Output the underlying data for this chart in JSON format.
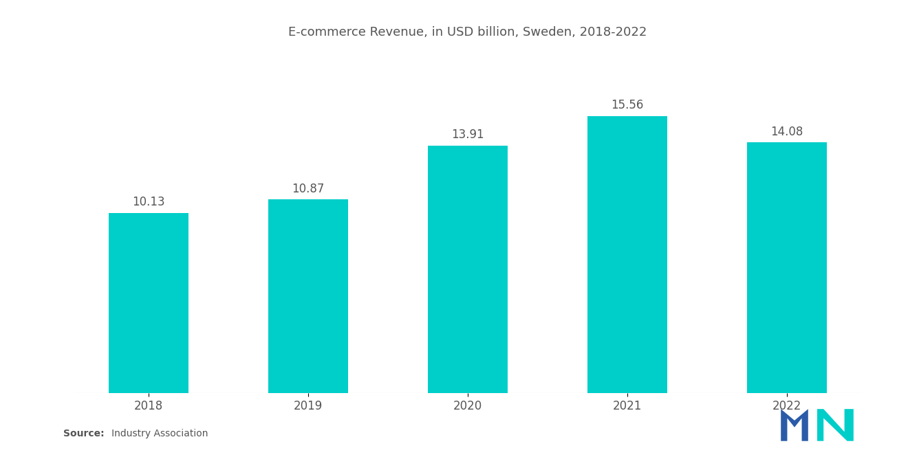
{
  "title": "E-commerce Revenue, in USD billion, Sweden, 2018-2022",
  "categories": [
    "2018",
    "2019",
    "2020",
    "2021",
    "2022"
  ],
  "values": [
    10.13,
    10.87,
    13.91,
    15.56,
    14.08
  ],
  "bar_color": "#00CEC9",
  "background_color": "#ffffff",
  "label_color": "#555555",
  "title_fontsize": 13,
  "tick_fontsize": 12,
  "value_fontsize": 12,
  "source_bold": "Source:",
  "source_rest": "   Industry Association",
  "ylim": [
    0,
    19
  ]
}
